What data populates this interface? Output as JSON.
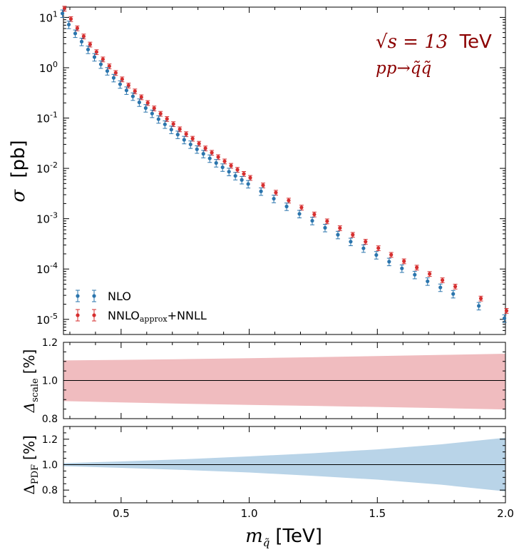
{
  "colors": {
    "nlo": "#2b75ad",
    "nnlo": "#d62f2f",
    "scale_band": "#f0bcbf",
    "pdf_band": "#b9d4e8",
    "annotation": "#8b0000"
  },
  "chart_data": [
    {
      "id": "main",
      "type": "scatter",
      "yscale": "log",
      "xlim": [
        0.275,
        2.0
      ],
      "ylim": [
        5e-06,
        16
      ],
      "ylabel_symbol": "σ",
      "ylabel_unit": "[pb]",
      "yticks": [
        {
          "value": 10,
          "base": "10",
          "exp": "1"
        },
        {
          "value": 1,
          "base": "10",
          "exp": "0"
        },
        {
          "value": 0.1,
          "base": "10",
          "exp": "-1"
        },
        {
          "value": 0.01,
          "base": "10",
          "exp": "-2"
        },
        {
          "value": 0.001,
          "base": "10",
          "exp": "-3"
        },
        {
          "value": 0.0001,
          "base": "10",
          "exp": "-4"
        },
        {
          "value": 1e-05,
          "base": "10",
          "exp": "-5"
        }
      ],
      "annotation_sqrt": "√s = 13",
      "annotation_unit": "TeV",
      "annotation_process": "pp→q̃q̃",
      "legend_position": "bottom-left",
      "legend": [
        {
          "name": "NLO",
          "series": "nlo"
        },
        {
          "name": "NNLO",
          "sub": "approx",
          "suffix": "+NNLL",
          "series": "nnlo"
        }
      ],
      "x": [
        0.275,
        0.3,
        0.325,
        0.35,
        0.375,
        0.4,
        0.425,
        0.45,
        0.475,
        0.5,
        0.525,
        0.55,
        0.575,
        0.6,
        0.625,
        0.65,
        0.675,
        0.7,
        0.725,
        0.75,
        0.775,
        0.8,
        0.825,
        0.85,
        0.875,
        0.9,
        0.925,
        0.95,
        0.975,
        1.0,
        1.05,
        1.1,
        1.15,
        1.2,
        1.25,
        1.3,
        1.35,
        1.4,
        1.45,
        1.5,
        1.55,
        1.6,
        1.65,
        1.7,
        1.75,
        1.8,
        1.9,
        2.0
      ],
      "series": [
        {
          "name": "NLO",
          "id": "nlo",
          "x_offset": -0.004,
          "rel_err": 0.17,
          "values": [
            12,
            7.2,
            4.8,
            3.3,
            2.3,
            1.63,
            1.17,
            0.86,
            0.63,
            0.47,
            0.355,
            0.27,
            0.205,
            0.158,
            0.123,
            0.095,
            0.075,
            0.059,
            0.047,
            0.037,
            0.03,
            0.024,
            0.0195,
            0.0158,
            0.0128,
            0.0105,
            0.0086,
            0.0071,
            0.0059,
            0.0049,
            0.0035,
            0.0025,
            0.00175,
            0.00125,
            0.00091,
            0.00066,
            0.00048,
            0.00035,
            0.000258,
            0.00019,
            0.00014,
            0.000103,
            7.7e-05,
            5.7e-05,
            4.3e-05,
            3.2e-05,
            1.85e-05,
            1.05e-05
          ]
        },
        {
          "name": "NNLOapprox+NNLL",
          "id": "nnlo",
          "x_offset": 0.004,
          "rel_err": 0.11,
          "values": [
            15,
            9.3,
            6.1,
            4.2,
            2.9,
            2.05,
            1.47,
            1.07,
            0.79,
            0.59,
            0.445,
            0.34,
            0.26,
            0.2,
            0.156,
            0.122,
            0.096,
            0.076,
            0.06,
            0.048,
            0.039,
            0.031,
            0.025,
            0.0205,
            0.0168,
            0.0138,
            0.0113,
            0.0094,
            0.0078,
            0.0065,
            0.0046,
            0.0033,
            0.0023,
            0.00167,
            0.00122,
            0.00089,
            0.00065,
            0.00048,
            0.00035,
            0.00026,
            0.000192,
            0.000143,
            0.000107,
            8e-05,
            6e-05,
            4.5e-05,
            2.6e-05,
            1.48e-05
          ]
        }
      ]
    },
    {
      "id": "scale",
      "type": "area",
      "xlim": [
        0.275,
        2.0
      ],
      "ylim": [
        0.8,
        1.2
      ],
      "yticks": [
        "0.8",
        "1.0",
        "1.2"
      ],
      "ylabel_symbol": "Δ",
      "ylabel_sub": "scale",
      "ylabel_unit": "[%]",
      "reference_line": 1.0,
      "band_x": [
        0.275,
        0.5,
        0.75,
        1.0,
        1.25,
        1.5,
        1.75,
        2.0
      ],
      "band_upper": [
        1.105,
        1.108,
        1.112,
        1.117,
        1.122,
        1.128,
        1.134,
        1.14
      ],
      "band_lower": [
        0.892,
        0.885,
        0.878,
        0.872,
        0.867,
        0.861,
        0.855,
        0.848
      ]
    },
    {
      "id": "pdf",
      "type": "area",
      "xlim": [
        0.275,
        2.0
      ],
      "ylim": [
        0.7,
        1.3
      ],
      "yticks": [
        "0.8",
        "1.0",
        "1.2"
      ],
      "ylabel_symbol": "Δ",
      "ylabel_sub": "PDF",
      "ylabel_unit": "[%]",
      "reference_line": 1.0,
      "xticks": [
        "0.5",
        "1.0",
        "1.5",
        "2.0"
      ],
      "xlabel_symbol": "m",
      "xlabel_sub": "q̃",
      "xlabel_unit": "[TeV]",
      "band_x": [
        0.275,
        0.5,
        0.75,
        1.0,
        1.25,
        1.5,
        1.75,
        2.0
      ],
      "band_upper": [
        1.012,
        1.025,
        1.043,
        1.065,
        1.09,
        1.12,
        1.16,
        1.212
      ],
      "band_lower": [
        0.988,
        0.975,
        0.958,
        0.938,
        0.912,
        0.882,
        0.842,
        0.79
      ]
    }
  ]
}
